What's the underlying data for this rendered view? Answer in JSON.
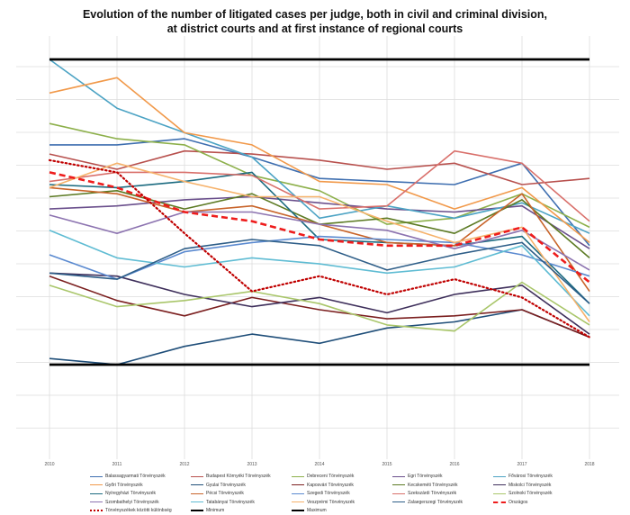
{
  "chart_data": {
    "type": "line",
    "title_lines": [
      "Evolution of the number of litigated cases per judge, both in civil and criminal division,",
      "at district courts and at first instance of regional courts"
    ],
    "x": [
      "2010",
      "2011",
      "2012",
      "2013",
      "2014",
      "2015",
      "2016",
      "2017",
      "2018"
    ],
    "ylim": [
      0,
      10
    ],
    "grid": true,
    "legend_position": "bottom",
    "series": [
      {
        "name": "Balassagyarmati Törvényszék",
        "color": "#3f6fb0",
        "style": "solid",
        "values": [
          7.2,
          7.2,
          7.4,
          6.8,
          6.1,
          6.0,
          5.9,
          6.6,
          3.9
        ]
      },
      {
        "name": "Budapest Környéki Törvényszék",
        "color": "#b8514e",
        "style": "solid",
        "values": [
          6.9,
          6.4,
          7.0,
          6.9,
          6.7,
          6.4,
          6.6,
          5.9,
          6.1
        ]
      },
      {
        "name": "Debreceni Törvényszék",
        "color": "#8db04b",
        "style": "solid",
        "values": [
          7.9,
          7.4,
          7.2,
          6.2,
          5.7,
          4.6,
          4.8,
          5.6,
          4.5
        ]
      },
      {
        "name": "Egri Törvényszék",
        "color": "#6a4f8c",
        "style": "solid",
        "values": [
          5.1,
          5.2,
          5.4,
          5.5,
          5.3,
          5.1,
          5.0,
          5.2,
          3.8
        ]
      },
      {
        "name": "Fővárosi Törvényszék",
        "color": "#4ca3c4",
        "style": "solid",
        "values": [
          10.0,
          8.4,
          7.6,
          6.8,
          4.8,
          5.2,
          4.8,
          5.3,
          4.3
        ]
      },
      {
        "name": "Győri Törvényszék",
        "color": "#f1994a",
        "style": "solid",
        "values": [
          8.9,
          9.4,
          7.6,
          7.2,
          6.0,
          5.9,
          5.1,
          5.8,
          4.0
        ]
      },
      {
        "name": "Gyulai Törvényszék",
        "color": "#1f4e79",
        "style": "solid",
        "values": [
          0.2,
          0.0,
          0.6,
          1.0,
          0.7,
          1.2,
          1.4,
          1.8,
          0.9
        ]
      },
      {
        "name": "Kaposvári Törvényszék",
        "color": "#7b1f1f",
        "style": "solid",
        "values": [
          2.9,
          2.1,
          1.6,
          2.2,
          1.8,
          1.5,
          1.6,
          1.8,
          0.9
        ]
      },
      {
        "name": "Kecskeméti Törvényszék",
        "color": "#5c7a23",
        "style": "solid",
        "values": [
          5.5,
          5.7,
          5.1,
          5.6,
          4.6,
          4.8,
          4.3,
          5.4,
          3.5
        ]
      },
      {
        "name": "Miskolci Törvényszék",
        "color": "#3e2f5b",
        "style": "solid",
        "values": [
          3.0,
          2.9,
          2.3,
          1.9,
          2.2,
          1.7,
          2.3,
          2.6,
          1.0
        ]
      },
      {
        "name": "Nyíregyházi Törvényszék",
        "color": "#1c6b80",
        "style": "solid",
        "values": [
          5.9,
          5.8,
          6.0,
          6.3,
          4.1,
          4.0,
          3.9,
          4.2,
          2.0
        ]
      },
      {
        "name": "Pécsi Törvényszék",
        "color": "#c8642a",
        "style": "solid",
        "values": [
          5.8,
          5.6,
          5.0,
          5.2,
          4.6,
          4.0,
          3.9,
          5.6,
          2.4
        ]
      },
      {
        "name": "Szegedi Törvényszék",
        "color": "#5b8ad0",
        "style": "solid",
        "values": [
          3.6,
          2.8,
          3.7,
          4.0,
          4.2,
          4.1,
          4.0,
          3.6,
          2.9
        ]
      },
      {
        "name": "Szekszárdi Törvényszék",
        "color": "#d9706b",
        "style": "solid",
        "values": [
          6.0,
          6.3,
          6.3,
          6.2,
          5.1,
          5.2,
          7.0,
          6.6,
          4.7
        ]
      },
      {
        "name": "Szolnoki Törvényszék",
        "color": "#a9c66a",
        "style": "solid",
        "values": [
          2.6,
          1.9,
          2.1,
          2.4,
          2.0,
          1.3,
          1.1,
          2.7,
          1.3
        ]
      },
      {
        "name": "Szombathelyi Törvényszék",
        "color": "#8c73b0",
        "style": "solid",
        "values": [
          4.9,
          4.3,
          5.0,
          5.0,
          4.6,
          4.4,
          3.8,
          4.4,
          3.1
        ]
      },
      {
        "name": "Tatabányai Törvényszék",
        "color": "#5fbcd3",
        "style": "solid",
        "values": [
          4.4,
          3.5,
          3.2,
          3.5,
          3.3,
          3.0,
          3.2,
          3.9,
          1.6
        ]
      },
      {
        "name": "Veszprémi Törvényszék",
        "color": "#f6b26b",
        "style": "solid",
        "values": [
          5.8,
          6.6,
          6.0,
          5.5,
          5.5,
          4.7,
          4.0,
          4.5,
          1.4
        ]
      },
      {
        "name": "Zalaegerszegi Törvényszék",
        "color": "#2e5e88",
        "style": "solid",
        "values": [
          3.0,
          2.8,
          3.8,
          4.1,
          3.9,
          3.1,
          3.6,
          4.0,
          2.0
        ]
      },
      {
        "name": "Országos",
        "color": "#ee1c1c",
        "style": "dashed",
        "values": [
          6.3,
          5.8,
          5.0,
          4.7,
          4.1,
          3.9,
          3.9,
          4.5,
          2.7
        ]
      },
      {
        "name": "Törvényszékek közötti különbség",
        "color": "#c00000",
        "style": "dotted",
        "values": [
          6.7,
          6.3,
          4.3,
          2.4,
          2.9,
          2.3,
          2.8,
          2.2,
          0.9
        ]
      },
      {
        "name": "Minimum",
        "color": "#000000",
        "style": "thick",
        "values": [
          0.0,
          0.0,
          0.0,
          0.0,
          0.0,
          0.0,
          0.0,
          0.0,
          0.0
        ]
      },
      {
        "name": "Maximum",
        "color": "#000000",
        "style": "thick",
        "values": [
          10.0,
          10.0,
          10.0,
          10.0,
          10.0,
          10.0,
          10.0,
          10.0,
          10.0
        ]
      }
    ]
  }
}
